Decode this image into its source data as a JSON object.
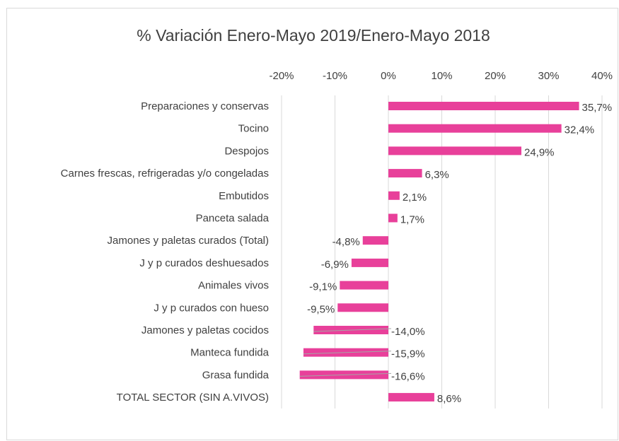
{
  "chart_data": {
    "type": "bar",
    "orientation": "horizontal",
    "title": "% Variación Enero-Mayo 2019/Enero-Mayo 2018",
    "categories": [
      "Preparaciones y conservas",
      "Tocino",
      "Despojos",
      "Carnes frescas, refrigeradas y/o congeladas",
      "Embutidos",
      "Panceta salada",
      "Jamones y paletas curados (Total)",
      "J y p curados deshuesados",
      "Animales vivos",
      "J y p curados con hueso",
      "Jamones y paletas cocidos",
      "Manteca fundida",
      "Grasa fundida",
      "TOTAL SECTOR (SIN A.VIVOS)"
    ],
    "values": [
      35.7,
      32.4,
      24.9,
      6.3,
      2.1,
      1.7,
      -4.8,
      -6.9,
      -9.1,
      -9.5,
      -14.0,
      -15.9,
      -16.6,
      8.6
    ],
    "value_labels": [
      "35,7%",
      "32,4%",
      "24,9%",
      "6,3%",
      "2,1%",
      "1,7%",
      "-4,8%",
      "-6,9%",
      "-9,1%",
      "-9,5%",
      "-14,0%",
      "-15,9%",
      "-16,6%",
      "8,6%"
    ],
    "color": "#e8409a",
    "xlim": [
      -20,
      40
    ],
    "xticks": [
      {
        "value": -20,
        "label": "-20%"
      },
      {
        "value": -10,
        "label": "-10%"
      },
      {
        "value": 0,
        "label": "0%"
      },
      {
        "value": 10,
        "label": "10%"
      },
      {
        "value": 20,
        "label": "20%"
      },
      {
        "value": 30,
        "label": "30%"
      },
      {
        "value": 40,
        "label": "40%"
      }
    ],
    "grid": true
  }
}
